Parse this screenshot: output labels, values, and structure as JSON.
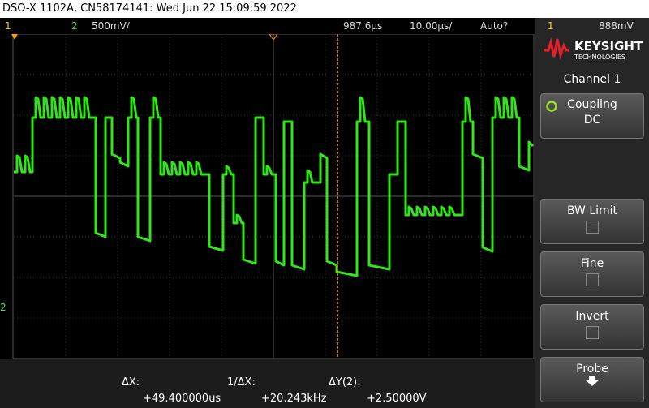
{
  "header": {
    "title": "DSO-X 1102A, CN58174141: Wed Jun 22 15:09:59 2022"
  },
  "status": {
    "ch1": "1",
    "ch2": "2",
    "ch2_scale": "500mV/",
    "delay": "987.6µs",
    "timebase": "10.00µs/",
    "trigger_mode": "Auto?",
    "trigger_source": "1",
    "trigger_level": "888mV"
  },
  "brand": {
    "name": "KEYSIGHT",
    "sub": "TECHNOLOGIES"
  },
  "ground_marker": "2",
  "menu": {
    "title": "Channel 1",
    "keys": [
      {
        "label": "Coupling",
        "value": "DC"
      },
      {
        "label": "BW Limit"
      },
      {
        "label": "Fine"
      },
      {
        "label": "Invert"
      },
      {
        "label": "Probe"
      }
    ]
  },
  "measurements": [
    {
      "label": "ΔX:",
      "value": "+49.400000us"
    },
    {
      "label": "1/ΔX:",
      "value": "+20.243kHz"
    },
    {
      "label": "ΔY(2):",
      "value": "+2.50000V"
    }
  ]
}
